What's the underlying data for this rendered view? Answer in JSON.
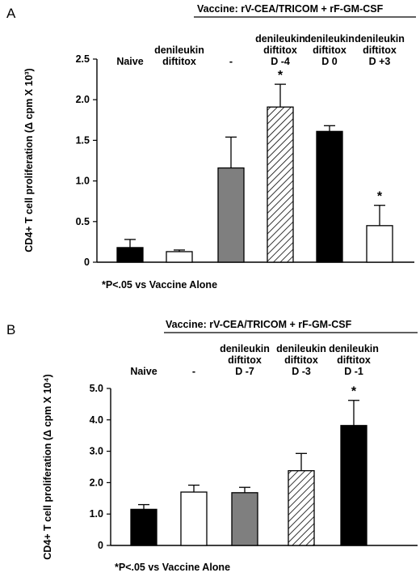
{
  "chart_data": [
    {
      "type": "bar",
      "panel_label": "A",
      "header": "Vaccine: rV-CEA/TRICOM  + rF-GM-CSF",
      "categories": [
        [
          "Naive"
        ],
        [
          "denileukin",
          "diftitox"
        ],
        [
          "-"
        ],
        [
          "denileukin",
          "diftitox",
          "D -4"
        ],
        [
          "denileukin",
          "diftitox",
          "D 0"
        ],
        [
          "denileukin",
          "diftitox",
          "D +3"
        ]
      ],
      "values": [
        0.18,
        0.13,
        1.16,
        1.91,
        1.61,
        0.45
      ],
      "errors": [
        0.1,
        0.02,
        0.38,
        0.28,
        0.07,
        0.25
      ],
      "fills": [
        "black",
        "white",
        "gray",
        "hatch",
        "black",
        "white"
      ],
      "significant": [
        false,
        false,
        false,
        true,
        false,
        true
      ],
      "ylabel": "CD4+ T cell proliferation (Δ cpm X 10³)",
      "ylim": [
        0,
        2.5
      ],
      "yticks": [
        "0",
        "0.5",
        "1.0",
        "1.5",
        "2.0",
        "2.5"
      ],
      "footnote": "*P<.05 vs Vaccine Alone",
      "colors": {
        "black": "#000000",
        "gray": "#7f7f7f",
        "white": "#ffffff"
      }
    },
    {
      "type": "bar",
      "panel_label": "B",
      "header": "Vaccine: rV-CEA/TRICOM  + rF-GM-CSF",
      "categories": [
        [
          "Naive"
        ],
        [
          "-"
        ],
        [
          "denileukin",
          "diftitox",
          "D -7"
        ],
        [
          "denileukin",
          "diftitox",
          "D -3"
        ],
        [
          "denileukin",
          "diftitox",
          "D -1"
        ]
      ],
      "values": [
        1.15,
        1.7,
        1.68,
        2.38,
        3.82
      ],
      "errors": [
        0.15,
        0.22,
        0.17,
        0.55,
        0.8
      ],
      "fills": [
        "black",
        "white",
        "gray",
        "hatch",
        "black"
      ],
      "significant": [
        false,
        false,
        false,
        false,
        true
      ],
      "ylabel": "CD4+ T cell proliferation (Δ cpm X 10⁴)",
      "ylim": [
        0,
        5
      ],
      "yticks": [
        "0",
        "1.0",
        "2.0",
        "3.0",
        "4.0",
        "5.0"
      ],
      "footnote": "*P<.05 vs Vaccine Alone",
      "colors": {
        "black": "#000000",
        "gray": "#7f7f7f",
        "white": "#ffffff"
      }
    }
  ]
}
